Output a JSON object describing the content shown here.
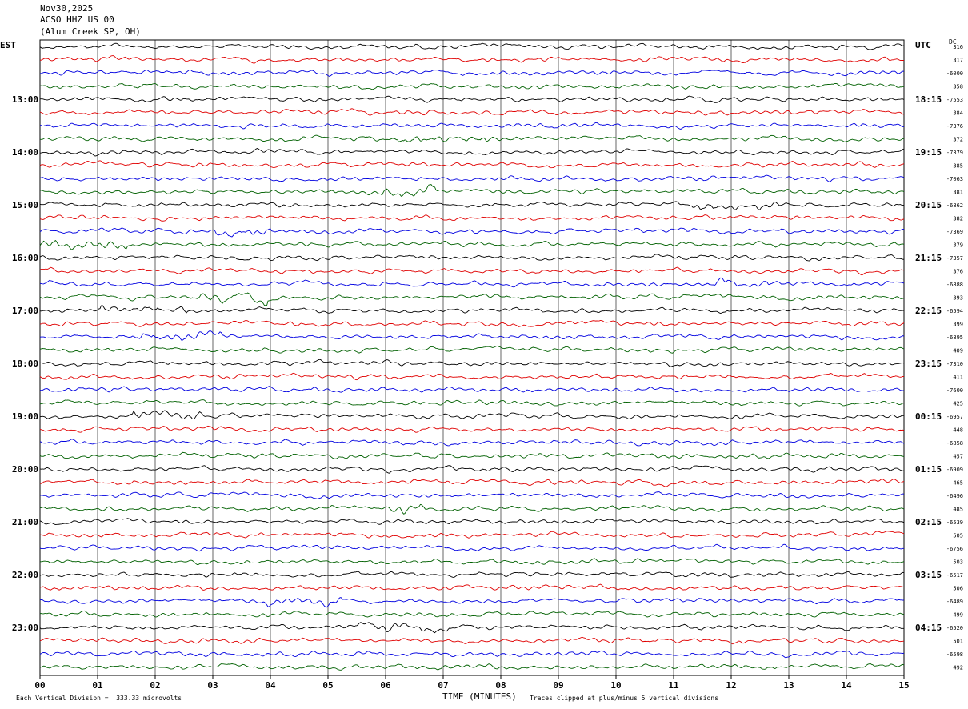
{
  "header": {
    "date": "Nov30,2025",
    "station": "ACSO HHZ US 00",
    "location": "(Alum Creek SP, OH)"
  },
  "labels": {
    "left_zone": "EST",
    "right_zone": "UTC",
    "dc": "DC",
    "xlabel": "TIME (MINUTES)"
  },
  "footer": {
    "scale": "Each Vertical Division =  333.33 microvolts",
    "clip": "Traces clipped at plus/minus 5 vertical divisions"
  },
  "colors": {
    "trace_cycle": [
      "#000000",
      "#e00000",
      "#0000e0",
      "#006000"
    ],
    "grid": "#000000"
  },
  "chart_data": {
    "type": "line",
    "title": "",
    "xlabel": "TIME (MINUTES)",
    "x_ticks": [
      "00",
      "01",
      "02",
      "03",
      "04",
      "05",
      "06",
      "07",
      "08",
      "09",
      "10",
      "11",
      "12",
      "13",
      "14",
      "15"
    ],
    "xlim": [
      0,
      15
    ],
    "grid": true,
    "trace_count": 48,
    "minutes_per_trace": 15,
    "est_hour_labels": [
      "13:00",
      "14:00",
      "15:00",
      "16:00",
      "17:00",
      "18:00",
      "19:00",
      "20:00",
      "21:00",
      "22:00",
      "23:00"
    ],
    "utc_hour_labels": [
      "18:15",
      "19:15",
      "20:15",
      "21:15",
      "22:15",
      "23:15",
      "00:15",
      "01:15",
      "02:15",
      "03:15",
      "04:15"
    ],
    "dc_offsets": [
      "316",
      "317",
      "-6000",
      "358",
      "-7553",
      "384",
      "-7376",
      "372",
      "-7379",
      "385",
      "-7063",
      "381",
      "-6862",
      "382",
      "-7369",
      "379",
      "-7357",
      "376",
      "-6888",
      "393",
      "-6594",
      "399",
      "-6895",
      "409",
      "-7310",
      "411",
      "-7600",
      "425",
      "-6957",
      "448",
      "-6858",
      "457",
      "-6909",
      "465",
      "-6496",
      "485",
      "-6539",
      "505",
      "-6756",
      "503",
      "-6517",
      "506",
      "-6489",
      "499",
      "-6520",
      "501",
      "-6598",
      "492"
    ]
  }
}
